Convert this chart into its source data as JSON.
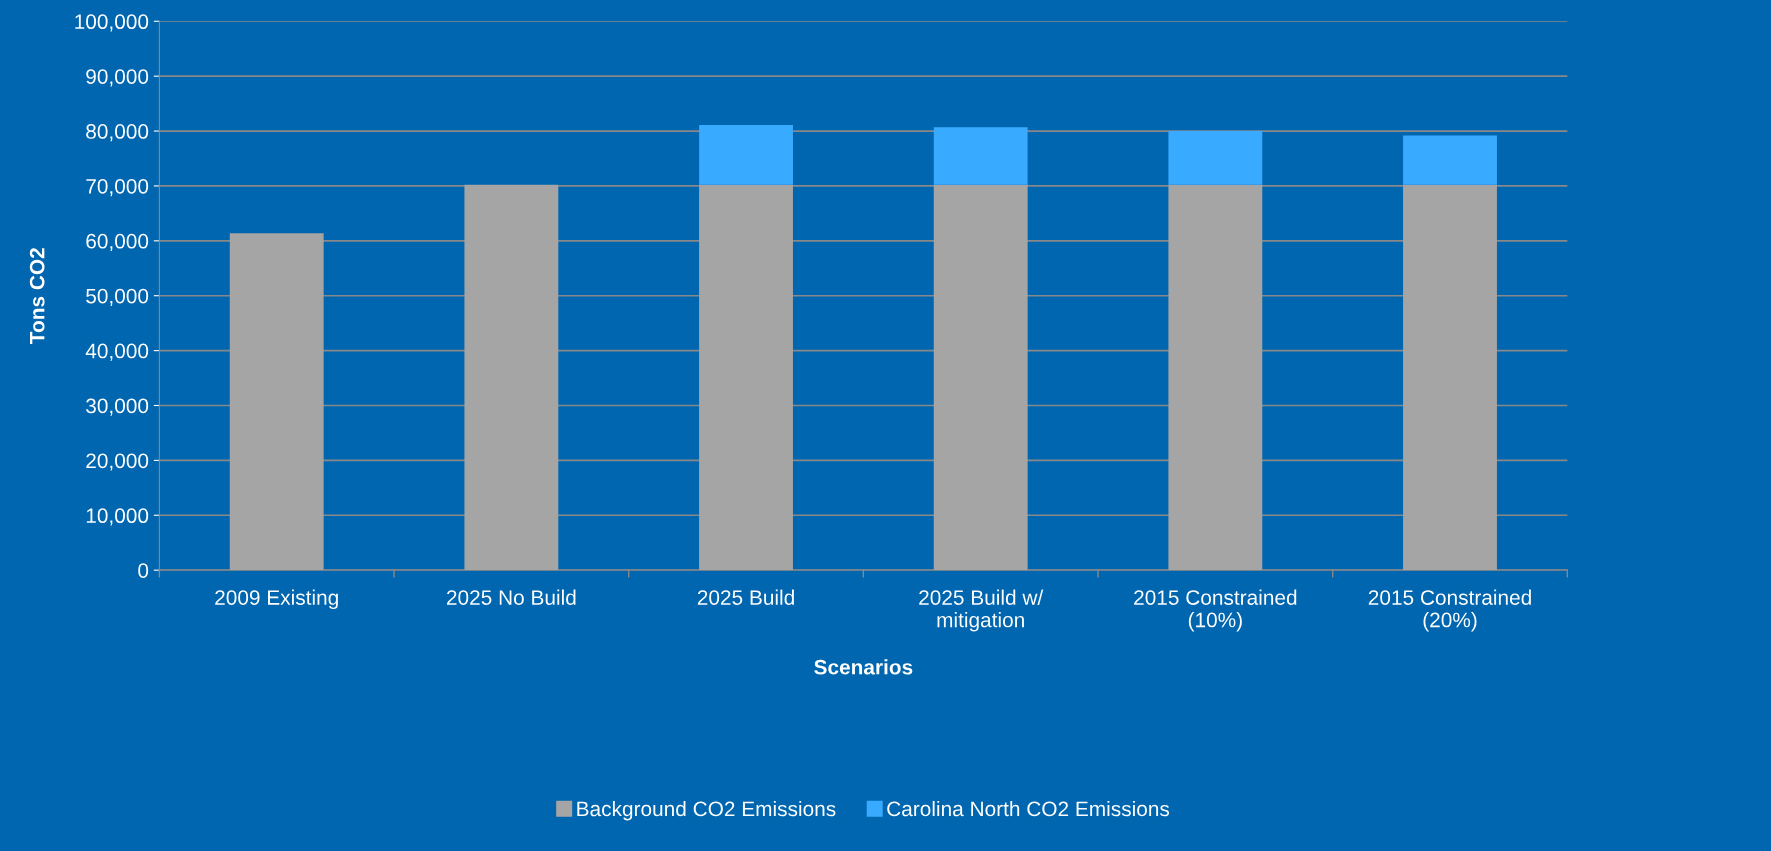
{
  "chart_data": {
    "type": "bar",
    "stacked": true,
    "xlabel": "Scenarios",
    "ylabel": "Tons CO2",
    "categories": [
      "2009 Existing",
      "2025 No Build",
      "2025 Build",
      "2025 Build w/\nmitigation",
      "2015 Constrained\n(10%)",
      "2015 Constrained\n(20%)"
    ],
    "series": [
      {
        "name": "Background CO2 Emissions",
        "color": "#a5a5a5",
        "values": [
          61400,
          70200,
          70200,
          70200,
          70200,
          70200
        ]
      },
      {
        "name": "Carolina North CO2 Emissions",
        "color": "#38aaff",
        "values": [
          null,
          null,
          10900,
          10500,
          9800,
          9000
        ]
      }
    ],
    "ylim": [
      0,
      100000
    ],
    "yticks": [
      {
        "value": 0,
        "label": "0"
      },
      {
        "value": 10000,
        "label": "10,000"
      },
      {
        "value": 20000,
        "label": "20,000"
      },
      {
        "value": 30000,
        "label": "30,000"
      },
      {
        "value": 40000,
        "label": "40,000"
      },
      {
        "value": 50000,
        "label": "50,000"
      },
      {
        "value": 60000,
        "label": "60,000"
      },
      {
        "value": 70000,
        "label": "70,000"
      },
      {
        "value": 80000,
        "label": "80,000"
      },
      {
        "value": 90000,
        "label": "90,000"
      },
      {
        "value": 100000,
        "label": "100,000"
      }
    ],
    "grid": "y",
    "legend": "bottom"
  }
}
